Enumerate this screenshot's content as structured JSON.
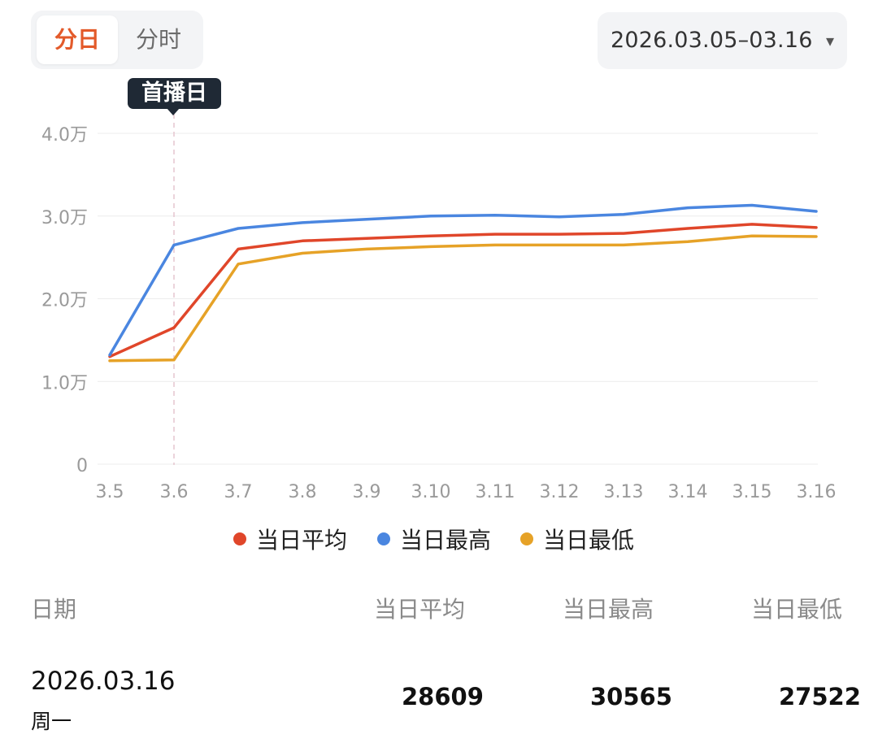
{
  "tabs": {
    "active": "分日",
    "inactive": "分时"
  },
  "date_range": {
    "label": "2026.03.05–03.16",
    "caret": "▾"
  },
  "tooltip": {
    "label": "首播日"
  },
  "colors": {
    "avg": "#e0462a",
    "high": "#4a86e0",
    "low": "#e6a227",
    "grid": "#ececec",
    "marker": "#e6c6cf"
  },
  "chart_data": {
    "type": "line",
    "x": [
      "3.5",
      "3.6",
      "3.7",
      "3.8",
      "3.9",
      "3.10",
      "3.11",
      "3.12",
      "3.13",
      "3.14",
      "3.15",
      "3.16"
    ],
    "y_ticks": [
      {
        "value": 0,
        "label": "0"
      },
      {
        "value": 10000,
        "label": "1.0万"
      },
      {
        "value": 20000,
        "label": "2.0万"
      },
      {
        "value": 30000,
        "label": "3.0万"
      },
      {
        "value": 40000,
        "label": "4.0万"
      }
    ],
    "ylim": [
      0,
      40000
    ],
    "grid": true,
    "marker_x": "3.6",
    "legend_position": "bottom",
    "series": [
      {
        "key": "avg",
        "name": "当日平均",
        "color": "#e0462a",
        "values": [
          13000,
          16500,
          26000,
          27000,
          27300,
          27600,
          27800,
          27800,
          27900,
          28500,
          29000,
          28609
        ]
      },
      {
        "key": "high",
        "name": "当日最高",
        "color": "#4a86e0",
        "values": [
          13200,
          26500,
          28500,
          29200,
          29600,
          30000,
          30100,
          29900,
          30200,
          31000,
          31300,
          30565
        ]
      },
      {
        "key": "low",
        "name": "当日最低",
        "color": "#e6a227",
        "values": [
          12500,
          12600,
          24200,
          25500,
          26000,
          26300,
          26500,
          26500,
          26500,
          26900,
          27600,
          27522
        ]
      }
    ]
  },
  "table": {
    "headers": {
      "date": "日期",
      "avg": "当日平均",
      "high": "当日最高",
      "low": "当日最低"
    },
    "rows": [
      {
        "date": "2026.03.16",
        "weekday": "周一",
        "avg": "28609",
        "high": "30565",
        "low": "27522"
      }
    ]
  }
}
